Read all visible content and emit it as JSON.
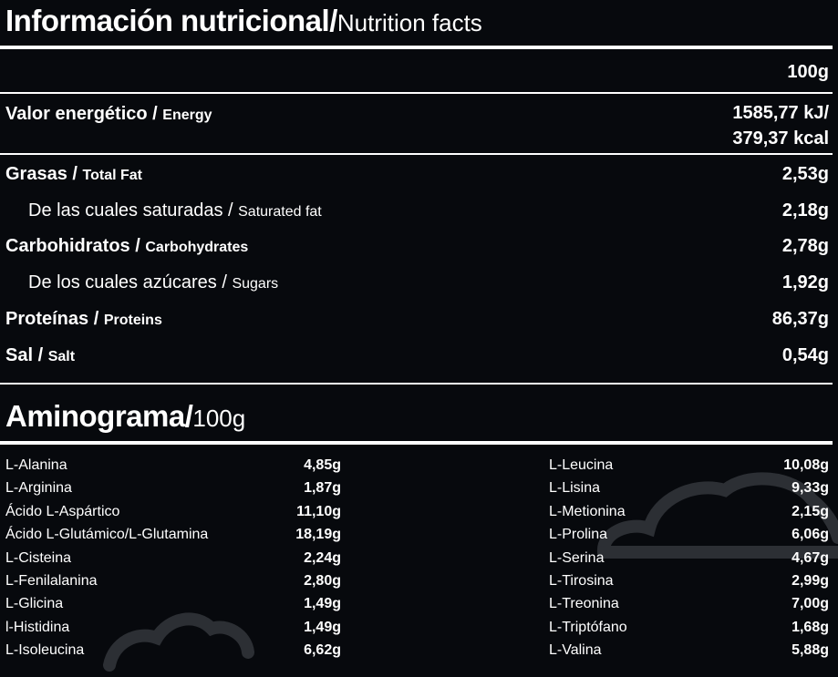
{
  "nutrition": {
    "title_es": "Información nutricional/",
    "title_en": "Nutrition facts",
    "column_header": "100g",
    "rows": [
      {
        "es": "Valor energético",
        "sep": " / ",
        "en": "Energy",
        "value_line1": "1585,77 kJ/",
        "value_line2": "379,37 kcal",
        "sub": false
      },
      {
        "es": "Grasas",
        "sep": " / ",
        "en": "Total Fat",
        "value": "2,53g",
        "sub": false
      },
      {
        "es": "De las cuales saturadas",
        "sep": " / ",
        "en": "Saturated fat",
        "value": "2,18g",
        "sub": true
      },
      {
        "es": "Carbohidratos",
        "sep": " / ",
        "en": "Carbohydrates",
        "value": "2,78g",
        "sub": false
      },
      {
        "es": "De los cuales azúcares",
        "sep": " / ",
        "en": "Sugars",
        "value": "1,92g",
        "sub": true
      },
      {
        "es": "Proteínas",
        "sep": " / ",
        "en": "Proteins",
        "value": "86,37g",
        "sub": false
      },
      {
        "es": "Sal",
        "sep": " / ",
        "en": "Salt",
        "value": "0,54g",
        "sub": false
      }
    ]
  },
  "aminogram": {
    "title_es": "Aminograma/",
    "title_en": "100g",
    "left": [
      {
        "name": "L-Alanina",
        "value": "4,85g"
      },
      {
        "name": "L-Arginina",
        "value": "1,87g"
      },
      {
        "name": "Ácido L-Aspártico",
        "value": "11,10g"
      },
      {
        "name": "Ácido L-Glutámico/L-Glutamina",
        "value": "18,19g"
      },
      {
        "name": "L-Cisteina",
        "value": "2,24g"
      },
      {
        "name": "L-Fenilalanina",
        "value": "2,80g"
      },
      {
        "name": "L-Glicina",
        "value": "1,49g"
      },
      {
        "name": "l-Histidina",
        "value": "1,49g"
      },
      {
        "name": "L-Isoleucina",
        "value": "6,62g"
      }
    ],
    "right": [
      {
        "name": "L-Leucina",
        "value": "10,08g"
      },
      {
        "name": "L-Lisina",
        "value": "9,33g"
      },
      {
        "name": "L-Metionina",
        "value": "2,15g"
      },
      {
        "name": "L-Prolina",
        "value": "6,06g"
      },
      {
        "name": "L-Serina",
        "value": "4,67g"
      },
      {
        "name": "L-Tirosina",
        "value": "2,99g"
      },
      {
        "name": "L-Treonina",
        "value": "7,00g"
      },
      {
        "name": "L-Triptófano",
        "value": "1,68g"
      },
      {
        "name": "L-Valina",
        "value": "5,88g"
      }
    ]
  },
  "colors": {
    "background": "#07090d",
    "text": "#ffffff",
    "watermark": "#2c2f34"
  },
  "icons": [
    "cloud-watermark-icon"
  ]
}
